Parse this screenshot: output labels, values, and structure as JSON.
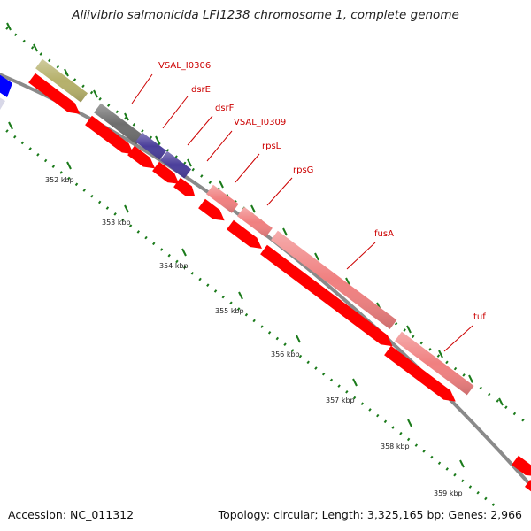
{
  "title": "Aliivibrio salmonicida LFI1238 chromosome 1, complete genome",
  "footer": {
    "accession": "Accession: NC_011312",
    "summary": "Topology: circular; Length: 3,325,165 bp; Genes: 2,966"
  },
  "ticks": [
    {
      "label": "352 kbp"
    },
    {
      "label": "353 kbp"
    },
    {
      "label": "354 kbp"
    },
    {
      "label": "355 kbp"
    },
    {
      "label": "356 kbp"
    },
    {
      "label": "357 kbp"
    },
    {
      "label": "358 kbp"
    },
    {
      "label": "359 kbp"
    }
  ],
  "gene_labels": [
    {
      "label": "VSAL_I0306"
    },
    {
      "label": "dsrE"
    },
    {
      "label": "dsrF"
    },
    {
      "label": "VSAL_I0309"
    },
    {
      "label": "rpsL"
    },
    {
      "label": "rpsG"
    },
    {
      "label": "fusA"
    },
    {
      "label": "tuf"
    }
  ],
  "colors": {
    "backbone": "#8a8a8a",
    "cds": "#ff0000",
    "label": "#cc0000",
    "ruler": "#1a7a1a",
    "rrna": "#f08080",
    "olive": "#b5b06a",
    "grey": "#6e6e6e",
    "purple": "#4a3e9a",
    "blue": "#0000ff"
  }
}
